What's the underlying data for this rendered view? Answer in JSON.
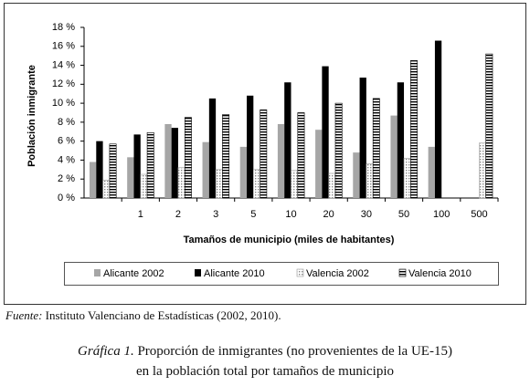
{
  "chart_data": {
    "type": "bar",
    "y_label": "Población inmigrante",
    "x_label": "Tamaños de municipio (miles de habitantes)",
    "categories": [
      null,
      "1",
      "2",
      "3",
      "5",
      "10",
      "20",
      "30",
      "50",
      "100",
      "500"
    ],
    "series": [
      {
        "name": "Alicante 2002",
        "color": "#a6a6a6",
        "hatch": "solid",
        "values": [
          3.8,
          4.3,
          7.8,
          5.9,
          5.4,
          7.8,
          7.2,
          4.8,
          8.7,
          5.4,
          null
        ]
      },
      {
        "name": "Alicante 2010",
        "color": "#000000",
        "hatch": "solid",
        "values": [
          6.0,
          6.7,
          7.4,
          10.5,
          10.8,
          12.2,
          13.9,
          12.7,
          12.2,
          16.6,
          null
        ]
      },
      {
        "name": "Valencia 2002",
        "color": "#9a9a9a",
        "hatch": "dots",
        "values": [
          1.9,
          2.5,
          3.2,
          3.0,
          3.0,
          2.9,
          2.6,
          3.6,
          4.2,
          null,
          5.8
        ]
      },
      {
        "name": "Valencia 2010",
        "color": "#000000",
        "hatch": "stripes",
        "values": [
          5.7,
          6.9,
          8.5,
          8.8,
          9.3,
          9.0,
          10.0,
          10.5,
          14.5,
          null,
          15.2
        ]
      }
    ],
    "ylim": [
      0,
      18
    ],
    "yticks": [
      {
        "value": 0,
        "label": "0 %"
      },
      {
        "value": 2,
        "label": "2 %"
      },
      {
        "value": 4,
        "label": "4 %"
      },
      {
        "value": 6,
        "label": "6 %"
      },
      {
        "value": 8,
        "label": "8 %"
      },
      {
        "value": 10,
        "label": "10 %"
      },
      {
        "value": 12,
        "label": "12 %"
      },
      {
        "value": 14,
        "label": "14 %"
      },
      {
        "value": 16,
        "label": "16 %"
      },
      {
        "value": 18,
        "label": "18 %"
      }
    ],
    "grid": false,
    "legend": "bottom"
  },
  "source": {
    "label": "Fuente:",
    "text": "Instituto Valenciano de Estadísticas (2002, 2010)."
  },
  "caption": {
    "label": "Gráfica 1.",
    "line1": "Proporción de inmigrantes (no provenientes de la UE-15)",
    "line2": "en la población total por tamaños de municipio"
  }
}
